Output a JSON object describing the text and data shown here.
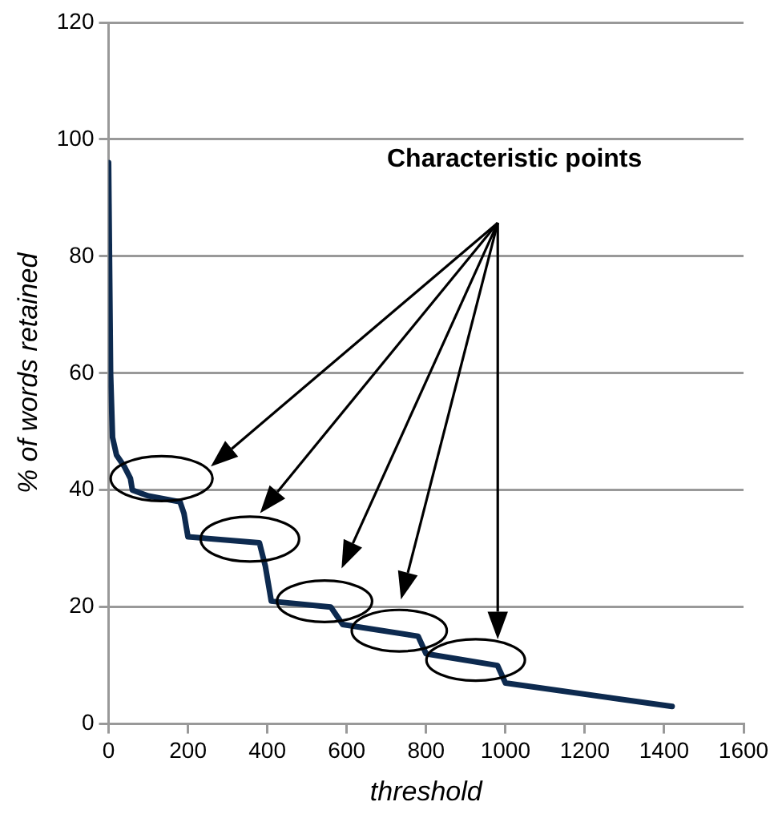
{
  "chart_data": {
    "type": "line",
    "xlabel": "threshold",
    "ylabel": "% of words retained",
    "x": [
      0,
      5,
      10,
      20,
      40,
      55,
      60,
      100,
      180,
      190,
      200,
      380,
      395,
      405,
      410,
      560,
      590,
      780,
      800,
      980,
      1000,
      1420
    ],
    "series": [
      {
        "color": "#0d2a4f",
        "values": [
          96,
          60,
          49,
          46,
          44,
          42,
          40,
          39,
          38,
          36,
          32,
          31,
          27,
          23,
          21,
          20,
          17,
          15,
          12,
          10,
          7,
          3
        ]
      }
    ],
    "xlim": [
      0,
      1600
    ],
    "xticks": [
      0,
      200,
      400,
      600,
      800,
      1000,
      1200,
      1400,
      1600
    ],
    "ylim": [
      0,
      120
    ],
    "yticks": [
      0,
      20,
      40,
      60,
      80,
      100,
      120
    ],
    "grid": "y",
    "legend": false,
    "marker": "none",
    "line_style": "solid",
    "annotations": [
      "Characteristic points"
    ]
  }
}
